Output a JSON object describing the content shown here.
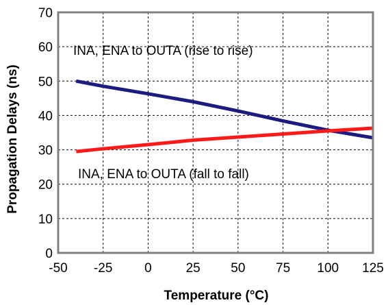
{
  "chart_data": {
    "type": "line",
    "xlabel": "Temperature (°C)",
    "ylabel": "Propagation Delays (ns)",
    "xlim": [
      -50,
      125
    ],
    "ylim": [
      0,
      70
    ],
    "x_ticks": [
      -50,
      -25,
      0,
      25,
      50,
      75,
      100,
      125
    ],
    "y_ticks": [
      0,
      10,
      20,
      30,
      40,
      50,
      60,
      70
    ],
    "grid": true,
    "legend": "none",
    "series": [
      {
        "name": "INA, ENA to OUTA (rise to rise)",
        "color": "#1c1c80",
        "points": [
          [
            -40,
            50.0
          ],
          [
            -25,
            48.5
          ],
          [
            0,
            46.3
          ],
          [
            25,
            44.0
          ],
          [
            50,
            41.3
          ],
          [
            75,
            38.4
          ],
          [
            100,
            35.7
          ],
          [
            125,
            33.5
          ]
        ]
      },
      {
        "name": "INA, ENA to OUTA (fall to fall)",
        "color": "#ff1a1a",
        "points": [
          [
            -40,
            29.5
          ],
          [
            -25,
            30.3
          ],
          [
            0,
            31.5
          ],
          [
            25,
            32.8
          ],
          [
            50,
            33.7
          ],
          [
            75,
            34.6
          ],
          [
            100,
            35.5
          ],
          [
            125,
            36.3
          ]
        ]
      }
    ]
  }
}
